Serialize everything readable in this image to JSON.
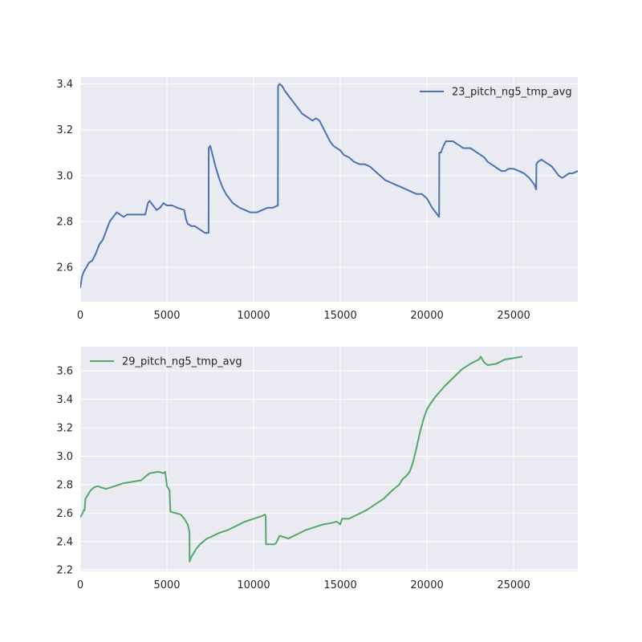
{
  "chart_data": [
    {
      "type": "line",
      "title": "",
      "xlabel": "",
      "ylabel": "",
      "xlim": [
        0,
        28700
      ],
      "ylim": [
        2.45,
        3.43
      ],
      "xticks": [
        0,
        5000,
        10000,
        15000,
        20000,
        25000
      ],
      "yticks": [
        2.6,
        2.8,
        3.0,
        3.2,
        3.4
      ],
      "ytick_decimals": 1,
      "grid": true,
      "legend_position": "top-right",
      "series": [
        {
          "name": "23_pitch_ng5_tmp_avg",
          "color": "#4c72b0",
          "x": [
            0,
            100,
            200,
            350,
            500,
            700,
            900,
            1100,
            1300,
            1500,
            1700,
            1900,
            2100,
            2300,
            2500,
            2700,
            3000,
            3400,
            3750,
            3900,
            4000,
            4200,
            4400,
            4600,
            4800,
            5000,
            5300,
            5600,
            6000,
            6100,
            6200,
            6400,
            6600,
            6800,
            7000,
            7200,
            7400,
            7410,
            7500,
            7600,
            7800,
            8000,
            8200,
            8400,
            8600,
            8800,
            9000,
            9200,
            9500,
            9800,
            10000,
            10200,
            10500,
            10800,
            11100,
            11400,
            11410,
            11500,
            11650,
            11800,
            12000,
            12200,
            12400,
            12600,
            12800,
            13000,
            13200,
            13400,
            13600,
            13800,
            14000,
            14200,
            14400,
            14600,
            14800,
            15000,
            15200,
            15500,
            15800,
            16100,
            16400,
            16700,
            17000,
            17300,
            17600,
            17900,
            18200,
            18500,
            18800,
            19100,
            19400,
            19700,
            20000,
            20300,
            20600,
            20700,
            20710,
            20800,
            20950,
            21100,
            21300,
            21500,
            21700,
            21900,
            22100,
            22300,
            22500,
            22700,
            22900,
            23100,
            23300,
            23500,
            23700,
            23900,
            24100,
            24300,
            24500,
            24700,
            25000,
            25300,
            25600,
            25900,
            26200,
            26300,
            26310,
            26400,
            26600,
            26800,
            27000,
            27200,
            27400,
            27600,
            27800,
            28000,
            28200,
            28400,
            28700
          ],
          "y": [
            2.51,
            2.56,
            2.58,
            2.6,
            2.62,
            2.63,
            2.66,
            2.7,
            2.72,
            2.76,
            2.8,
            2.82,
            2.84,
            2.83,
            2.82,
            2.83,
            2.83,
            2.83,
            2.83,
            2.88,
            2.89,
            2.87,
            2.85,
            2.86,
            2.88,
            2.87,
            2.87,
            2.86,
            2.85,
            2.81,
            2.79,
            2.78,
            2.78,
            2.77,
            2.76,
            2.75,
            2.75,
            3.12,
            3.13,
            3.1,
            3.04,
            2.99,
            2.95,
            2.92,
            2.9,
            2.88,
            2.87,
            2.86,
            2.85,
            2.84,
            2.84,
            2.84,
            2.85,
            2.86,
            2.86,
            2.87,
            3.39,
            3.4,
            3.39,
            3.37,
            3.35,
            3.33,
            3.31,
            3.29,
            3.27,
            3.26,
            3.25,
            3.24,
            3.25,
            3.24,
            3.21,
            3.18,
            3.15,
            3.13,
            3.12,
            3.11,
            3.09,
            3.08,
            3.06,
            3.05,
            3.05,
            3.04,
            3.02,
            3.0,
            2.98,
            2.97,
            2.96,
            2.95,
            2.94,
            2.93,
            2.92,
            2.92,
            2.9,
            2.86,
            2.83,
            2.82,
            3.1,
            3.1,
            3.13,
            3.15,
            3.15,
            3.15,
            3.14,
            3.13,
            3.12,
            3.12,
            3.12,
            3.11,
            3.1,
            3.09,
            3.08,
            3.06,
            3.05,
            3.04,
            3.03,
            3.02,
            3.02,
            3.03,
            3.03,
            3.02,
            3.01,
            2.99,
            2.96,
            2.94,
            3.05,
            3.06,
            3.07,
            3.06,
            3.05,
            3.04,
            3.02,
            3.0,
            2.99,
            3.0,
            3.01,
            3.01,
            3.02
          ]
        }
      ]
    },
    {
      "type": "line",
      "title": "",
      "xlabel": "",
      "ylabel": "",
      "xlim": [
        0,
        28700
      ],
      "ylim": [
        2.19,
        3.77
      ],
      "xticks": [
        0,
        5000,
        10000,
        15000,
        20000,
        25000
      ],
      "yticks": [
        2.2,
        2.4,
        2.6,
        2.8,
        3.0,
        3.2,
        3.4,
        3.6
      ],
      "ytick_decimals": 1,
      "grid": true,
      "legend_position": "top-left",
      "series": [
        {
          "name": "29_pitch_ng5_tmp_avg",
          "color": "#55a868",
          "x": [
            0,
            100,
            200,
            250,
            300,
            400,
            500,
            600,
            800,
            1000,
            1200,
            1500,
            2000,
            2500,
            3000,
            3500,
            3700,
            4000,
            4500,
            4800,
            4900,
            5000,
            5100,
            5150,
            5200,
            5500,
            5800,
            6000,
            6200,
            6300,
            6310,
            6400,
            6500,
            6700,
            6900,
            7100,
            7300,
            7500,
            8000,
            8500,
            9000,
            9500,
            10000,
            10500,
            10650,
            10700,
            10710,
            10900,
            11200,
            11300,
            11500,
            11800,
            12000,
            12500,
            13000,
            13500,
            14000,
            14500,
            14800,
            15000,
            15100,
            15500,
            16000,
            16500,
            17000,
            17500,
            18000,
            18400,
            18600,
            18800,
            19000,
            19200,
            19400,
            19600,
            19800,
            20000,
            20200,
            20500,
            21000,
            21500,
            22000,
            22500,
            23000,
            23100,
            23300,
            23500,
            24000,
            24500,
            25000,
            25500
          ],
          "y": [
            2.57,
            2.59,
            2.62,
            2.62,
            2.7,
            2.72,
            2.74,
            2.76,
            2.78,
            2.79,
            2.78,
            2.77,
            2.79,
            2.81,
            2.82,
            2.83,
            2.85,
            2.88,
            2.89,
            2.88,
            2.89,
            2.79,
            2.77,
            2.76,
            2.61,
            2.6,
            2.59,
            2.56,
            2.52,
            2.47,
            2.26,
            2.29,
            2.31,
            2.35,
            2.38,
            2.4,
            2.42,
            2.43,
            2.46,
            2.48,
            2.51,
            2.54,
            2.56,
            2.58,
            2.59,
            2.58,
            2.38,
            2.38,
            2.38,
            2.39,
            2.44,
            2.43,
            2.42,
            2.45,
            2.48,
            2.5,
            2.52,
            2.53,
            2.54,
            2.52,
            2.56,
            2.56,
            2.59,
            2.62,
            2.66,
            2.7,
            2.76,
            2.8,
            2.84,
            2.86,
            2.89,
            2.96,
            3.06,
            3.17,
            3.26,
            3.33,
            3.37,
            3.42,
            3.49,
            3.55,
            3.61,
            3.65,
            3.68,
            3.7,
            3.66,
            3.64,
            3.65,
            3.68,
            3.69,
            3.7
          ]
        }
      ]
    }
  ]
}
